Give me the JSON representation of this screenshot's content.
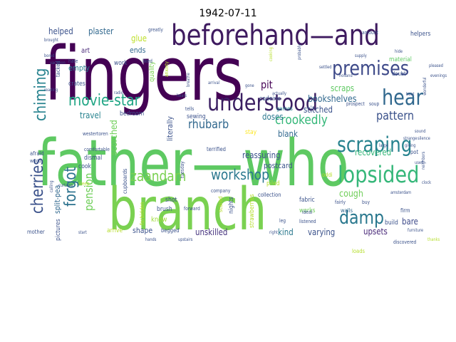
{
  "title": "1942-07-11",
  "colors": {
    "purple": "#440154",
    "darkpurple": "#3b1f62",
    "indigo": "#3e4a89",
    "blue": "#31688e",
    "teal": "#26828e",
    "green": "#35b779",
    "lightgreen": "#6ece58",
    "lime": "#b5de2b",
    "yellow": "#dde318"
  },
  "words": [
    {
      "text": "fingers",
      "color": "#440154"
    },
    {
      "text": "father—who",
      "color": "#5ec962"
    },
    {
      "text": "branch",
      "color": "#7ad151"
    },
    {
      "text": "beforehand—and",
      "color": "#3e1a5f"
    },
    {
      "text": "understood",
      "color": "#3b1f62"
    },
    {
      "text": "premises",
      "color": "#3e4a89"
    },
    {
      "text": "hear",
      "color": "#31688e"
    },
    {
      "text": "lopsided",
      "color": "#35b779"
    },
    {
      "text": "scraping",
      "color": "#26828e"
    },
    {
      "text": "damp",
      "color": "#2a788e"
    },
    {
      "text": "movie-star",
      "color": "#21a685"
    },
    {
      "text": "zaandam",
      "color": "#7ad151"
    },
    {
      "text": "workshop",
      "color": "#2a788e"
    },
    {
      "text": "chiming",
      "color": "#26828e"
    },
    {
      "text": "cherries",
      "color": "#3b528b"
    },
    {
      "text": "forgot",
      "color": "#2c728e"
    },
    {
      "text": "crookedly",
      "color": "#35b779"
    },
    {
      "text": "pattern",
      "color": "#3b528b"
    },
    {
      "text": "rhubarb",
      "color": "#31688e"
    },
    {
      "text": "pension",
      "color": "#6ece58"
    },
    {
      "text": "helped",
      "color": "#3b528b"
    },
    {
      "text": "plaster",
      "color": "#31688e"
    },
    {
      "text": "glue",
      "color": "#bddf26"
    },
    {
      "text": "scraps",
      "color": "#5ec962"
    },
    {
      "text": "pit",
      "color": "#440154"
    },
    {
      "text": "bookshelves",
      "color": "#31688e"
    },
    {
      "text": "stitched",
      "color": "#3b528b"
    },
    {
      "text": "recovered",
      "color": "#35b779"
    },
    {
      "text": "doses",
      "color": "#2a788e"
    },
    {
      "text": "travel",
      "color": "#26828e"
    },
    {
      "text": "scorched",
      "color": "#6ece58"
    },
    {
      "text": "blank",
      "color": "#31688e"
    },
    {
      "text": "reassuring",
      "color": "#3b528b"
    },
    {
      "text": "postcard",
      "color": "#3b528b"
    },
    {
      "text": "cough",
      "color": "#6ece58"
    },
    {
      "text": "bare",
      "color": "#3e4a89"
    },
    {
      "text": "varying",
      "color": "#3b528b"
    },
    {
      "text": "upsets",
      "color": "#482878"
    },
    {
      "text": "kind",
      "color": "#2a788e"
    },
    {
      "text": "unskilled",
      "color": "#46337e"
    },
    {
      "text": "shape",
      "color": "#3b528b"
    },
    {
      "text": "split-pea",
      "color": "#31688e"
    },
    {
      "text": "literally",
      "color": "#3b528b"
    },
    {
      "text": "empty",
      "color": "#26828e"
    },
    {
      "text": "ends",
      "color": "#31688e"
    },
    {
      "text": "art",
      "color": "#482878"
    },
    {
      "text": "crates",
      "color": "#3b528b"
    },
    {
      "text": "quality",
      "color": "#7ad151"
    },
    {
      "text": "material",
      "color": "#5ec962"
    },
    {
      "text": "helpers",
      "color": "#3b528b"
    },
    {
      "text": "games",
      "color": "#26828e"
    },
    {
      "text": "codeine",
      "color": "#3b528b"
    },
    {
      "text": "sewing",
      "color": "#3b528b"
    },
    {
      "text": "bedroom",
      "color": "#3b528b"
    },
    {
      "text": "know",
      "color": "#9fda3a"
    },
    {
      "text": "shot",
      "color": "#3b528b"
    },
    {
      "text": "brush",
      "color": "#3b528b"
    },
    {
      "text": "fabric",
      "color": "#3b528b"
    },
    {
      "text": "works",
      "color": "#6ece58"
    },
    {
      "text": "piled",
      "color": "#b5de2b"
    },
    {
      "text": "walls",
      "color": "#31688e"
    },
    {
      "text": "build",
      "color": "#3b528b"
    },
    {
      "text": "loads",
      "color": "#b5de2b"
    },
    {
      "text": "firm",
      "color": "#3b528b"
    },
    {
      "text": "mother",
      "color": "#3b528b"
    },
    {
      "text": "pictures",
      "color": "#3b528b"
    },
    {
      "text": "arrive",
      "color": "#b5de2b"
    },
    {
      "text": "begged",
      "color": "#3b528b"
    },
    {
      "text": "nights",
      "color": "#3b528b"
    },
    {
      "text": "strawberries",
      "color": "#b5de2b"
    },
    {
      "text": "collection",
      "color": "#3b528b"
    },
    {
      "text": "cook",
      "color": "#3b528b"
    },
    {
      "text": "dismal",
      "color": "#3b528b"
    },
    {
      "text": "tacked",
      "color": "#3b528b"
    },
    {
      "text": "terrified",
      "color": "#3b528b"
    },
    {
      "text": "oddi",
      "color": "#b5de2b"
    },
    {
      "text": "stay",
      "color": "#fde725"
    },
    {
      "text": "forbidden",
      "color": "#b5de2b"
    },
    {
      "text": "scared",
      "color": "#b5de2b"
    },
    {
      "text": "doubt",
      "color": "#3b528b"
    },
    {
      "text": "work",
      "color": "#3b528b"
    },
    {
      "text": "afraid",
      "color": "#3b528b"
    },
    {
      "text": "comfortable",
      "color": "#3b528b"
    },
    {
      "text": "greatly",
      "color": "#3b528b"
    },
    {
      "text": "cupboards",
      "color": "#3b528b"
    },
    {
      "text": "company",
      "color": "#3b528b"
    },
    {
      "text": "fairly",
      "color": "#3b528b"
    },
    {
      "text": "buy",
      "color": "#3b528b"
    },
    {
      "text": "listened",
      "color": "#3b528b"
    },
    {
      "text": "ideal",
      "color": "#3b528b"
    },
    {
      "text": "discovered",
      "color": "#3b528b"
    },
    {
      "text": "soup",
      "color": "#3b528b"
    },
    {
      "text": "prospect",
      "color": "#3b528b"
    },
    {
      "text": "amount",
      "color": "#3b528b"
    },
    {
      "text": "liked",
      "color": "#3b528b"
    },
    {
      "text": "hate",
      "color": "#3b528b"
    },
    {
      "text": "wood",
      "color": "#3b528b"
    },
    {
      "text": "sleep",
      "color": "#b5de2b"
    },
    {
      "text": "tells",
      "color": "#3b528b"
    },
    {
      "text": "silence",
      "color": "#3b528b"
    },
    {
      "text": "tuesday",
      "color": "#3b528b"
    },
    {
      "text": "westertoren",
      "color": "#3b528b"
    },
    {
      "text": "actually",
      "color": "#3b528b"
    },
    {
      "text": "forward",
      "color": "#3b528b"
    },
    {
      "text": "amsterdam",
      "color": "#3b528b"
    },
    {
      "text": "supply",
      "color": "#3b528b"
    },
    {
      "text": "arrival",
      "color": "#3b528b"
    },
    {
      "text": "cooking",
      "color": "#b5de2b"
    },
    {
      "text": "anxiety",
      "color": "#b5de2b"
    },
    {
      "text": "curtains",
      "color": "#3b528b"
    },
    {
      "text": "sound",
      "color": "#3b528b"
    },
    {
      "text": "calling",
      "color": "#3b528b"
    },
    {
      "text": "gone",
      "color": "#3b528b"
    },
    {
      "text": "start",
      "color": "#3b528b"
    },
    {
      "text": "reading",
      "color": "#3b528b"
    },
    {
      "text": "right",
      "color": "#3b528b"
    },
    {
      "text": "leg",
      "color": "#3b528b"
    },
    {
      "text": "hands",
      "color": "#3b528b"
    },
    {
      "text": "radio",
      "color": "#3b528b"
    },
    {
      "text": "hears",
      "color": "#3b528b"
    },
    {
      "text": "neighbors",
      "color": "#3b528b"
    },
    {
      "text": "clock",
      "color": "#3b528b"
    },
    {
      "text": "giving",
      "color": "#3b528b"
    },
    {
      "text": "pot",
      "color": "#3b528b"
    },
    {
      "text": "used",
      "color": "#3b528b"
    },
    {
      "text": "strange",
      "color": "#3b528b"
    },
    {
      "text": "thanks",
      "color": "#b5de2b"
    },
    {
      "text": "furniture",
      "color": "#3b528b"
    },
    {
      "text": "evenings",
      "color": "#3b528b"
    },
    {
      "text": "vacation",
      "color": "#3b528b"
    },
    {
      "text": "upstairs",
      "color": "#3b528b"
    },
    {
      "text": "brought",
      "color": "#3b528b"
    },
    {
      "text": "bored",
      "color": "#3b528b"
    },
    {
      "text": "hide",
      "color": "#3b528b"
    },
    {
      "text": "beat",
      "color": "#3b528b"
    },
    {
      "text": "wonderful",
      "color": "#3b528b"
    },
    {
      "text": "probably",
      "color": "#3b528b"
    },
    {
      "text": "settled",
      "color": "#3b528b"
    },
    {
      "text": "holland",
      "color": "#3b528b"
    },
    {
      "text": "large",
      "color": "#3b528b"
    },
    {
      "text": "breathe",
      "color": "#3b528b"
    },
    {
      "text": "pleased",
      "color": "#3b528b"
    }
  ]
}
